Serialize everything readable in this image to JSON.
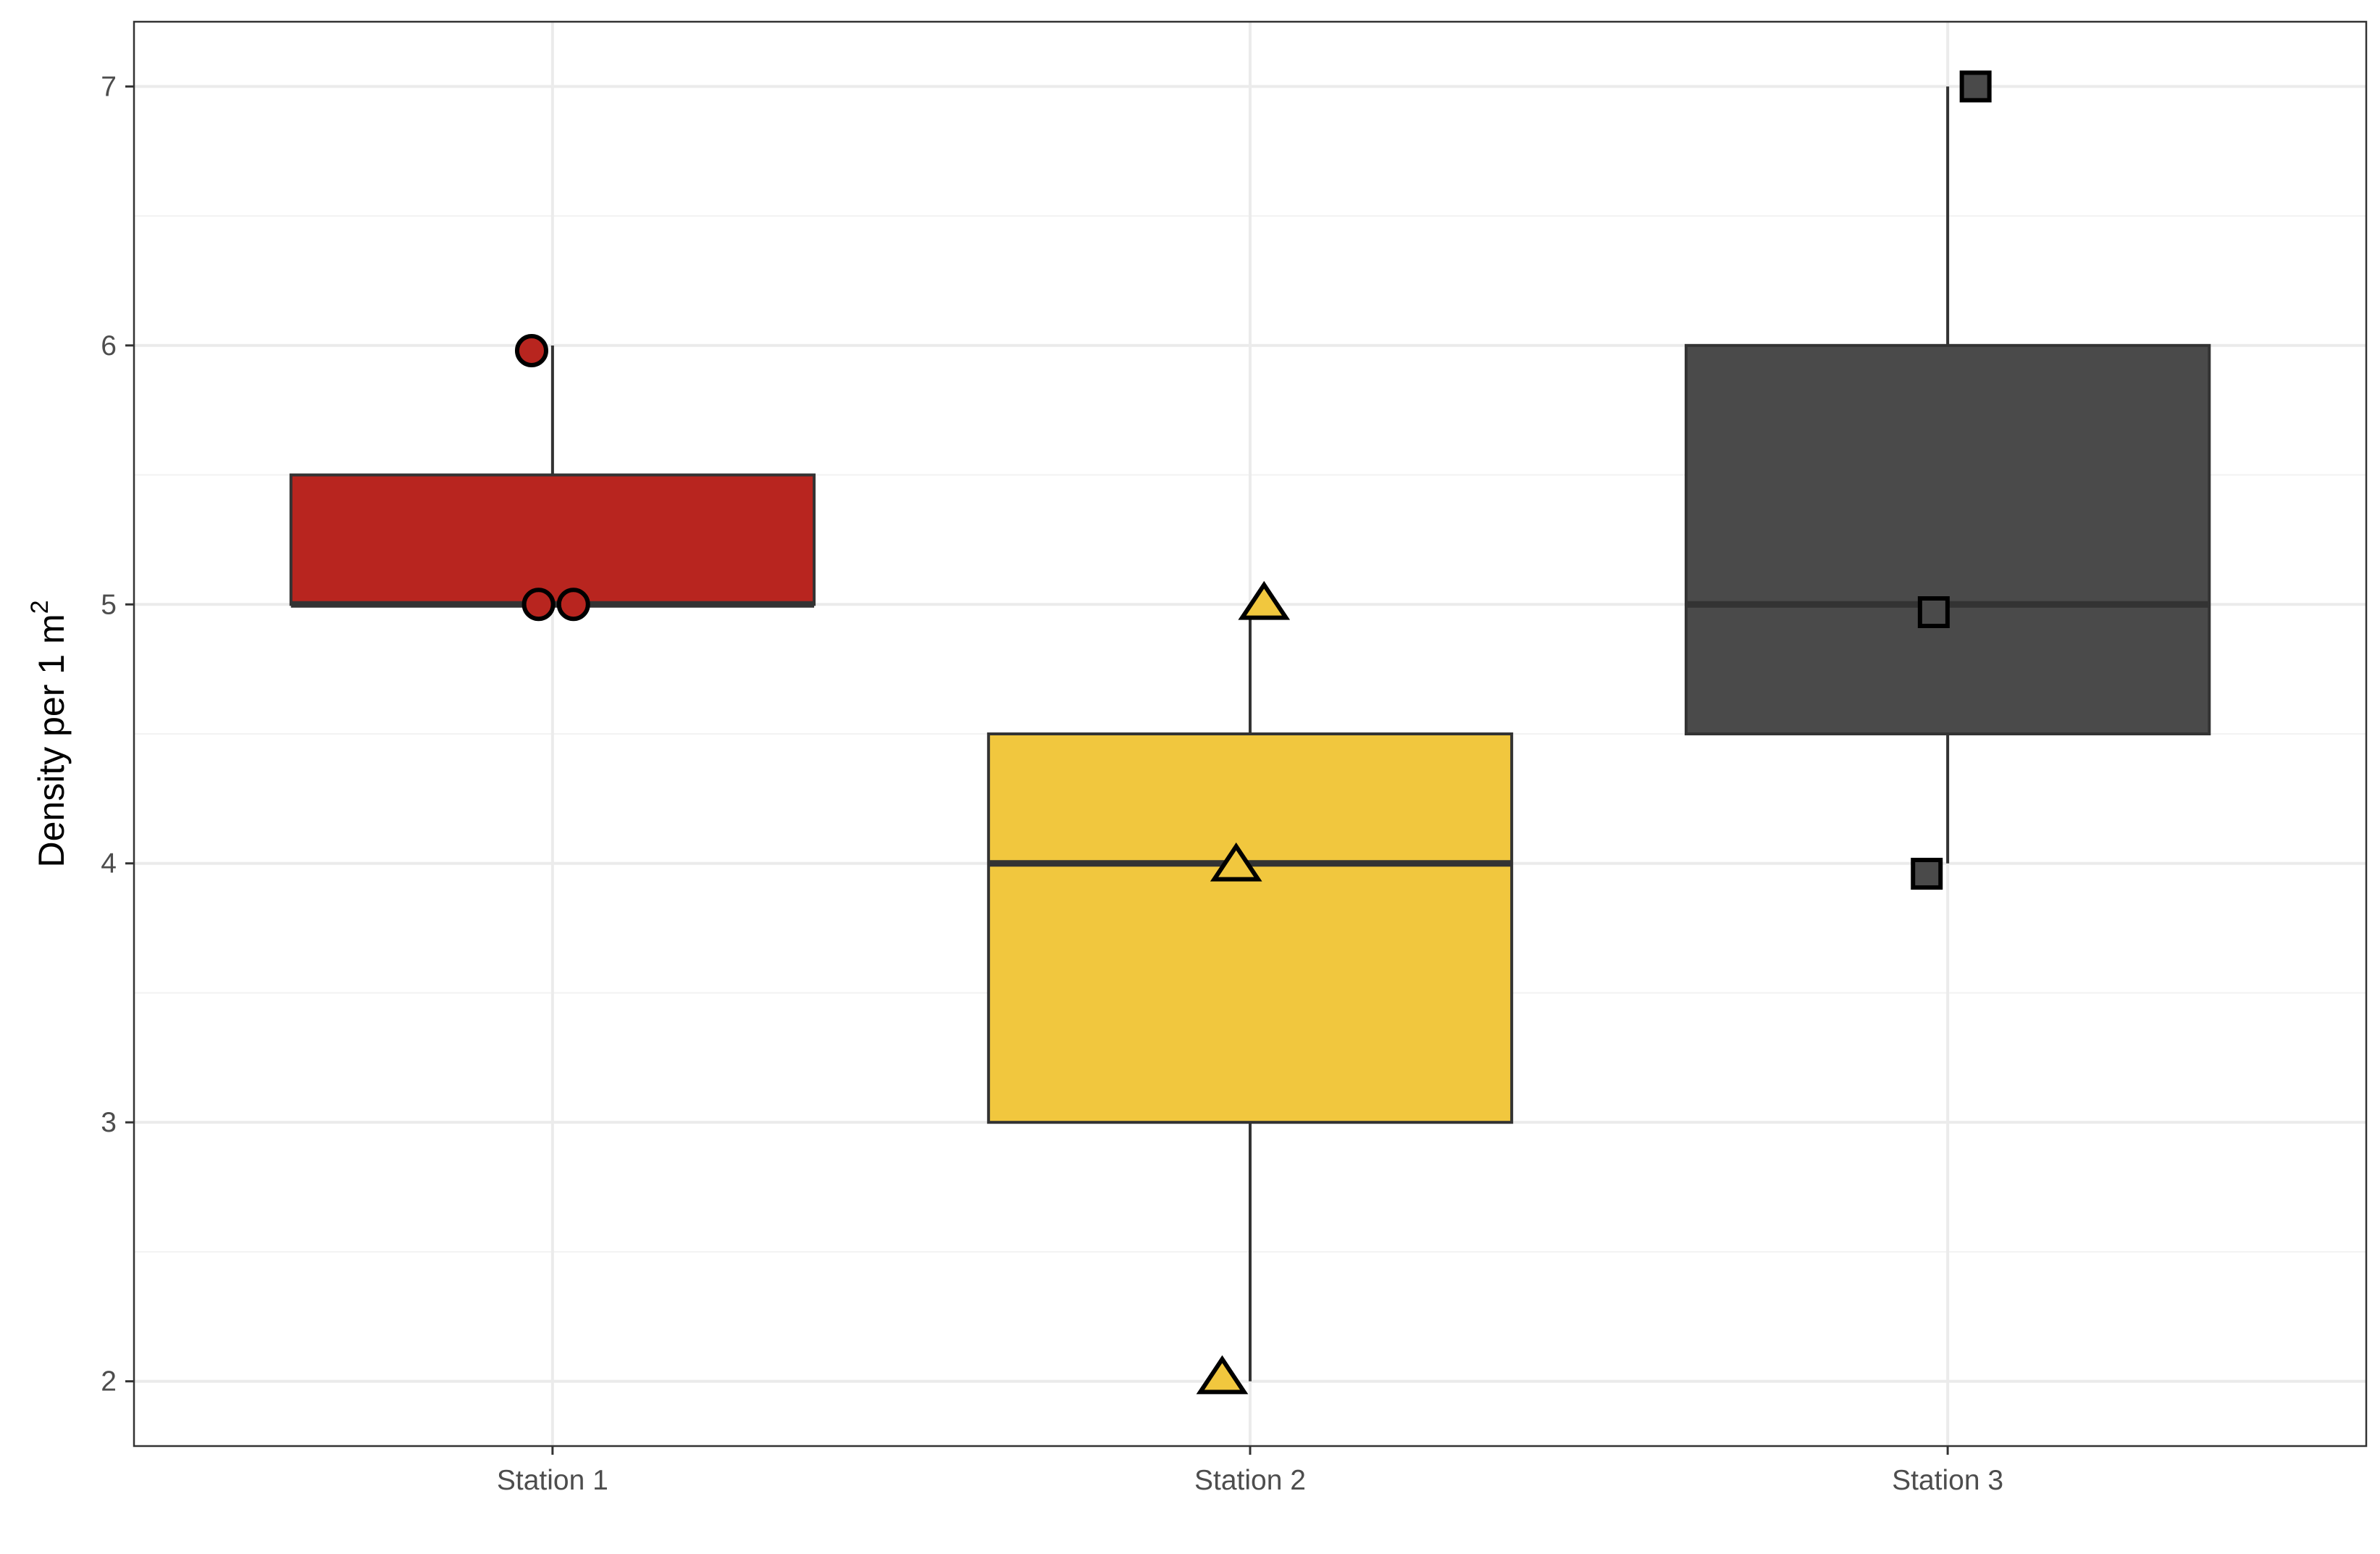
{
  "chart_data": {
    "type": "box",
    "ylabel": {
      "main": "Density per 1 m",
      "superscript": "2"
    },
    "xlabel": "",
    "ylim": [
      1.75,
      7.25
    ],
    "yticks": [
      2,
      3,
      4,
      5,
      6,
      7
    ],
    "grid": true,
    "categories": [
      "Station 1",
      "Station 2",
      "Station 3"
    ],
    "boxes": [
      {
        "category": "Station 1",
        "q1": 5,
        "median": 5,
        "q3": 5.5,
        "whisker_low": 5,
        "whisker_high": 6,
        "color": "#b8251f",
        "marker": "circle",
        "points": [
          {
            "x": 0.97,
            "y": 5.98
          },
          {
            "x": 0.98,
            "y": 5.0
          },
          {
            "x": 1.03,
            "y": 5.0
          }
        ]
      },
      {
        "category": "Station 2",
        "q1": 3,
        "median": 4,
        "q3": 4.5,
        "whisker_low": 2,
        "whisker_high": 5,
        "color": "#f1c73e",
        "marker": "triangle",
        "points": [
          {
            "x": 2.02,
            "y": 5.0
          },
          {
            "x": 1.98,
            "y": 3.99
          },
          {
            "x": 1.96,
            "y": 2.01
          }
        ]
      },
      {
        "category": "Station 3",
        "q1": 4.5,
        "median": 5,
        "q3": 6,
        "whisker_low": 4,
        "whisker_high": 7,
        "color": "#4a4a4a",
        "marker": "square",
        "points": [
          {
            "x": 3.04,
            "y": 7.0
          },
          {
            "x": 2.98,
            "y": 4.97
          },
          {
            "x": 2.97,
            "y": 3.96
          }
        ]
      }
    ]
  }
}
